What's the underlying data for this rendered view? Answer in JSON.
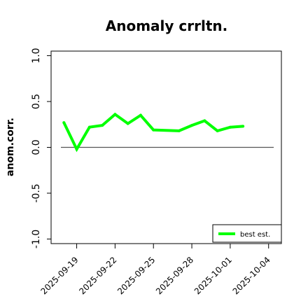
{
  "chart_data": {
    "type": "line",
    "title": "Anomaly crrltn.",
    "xlabel": "",
    "ylabel": "anom.corr.",
    "x": [
      "2025-09-18",
      "2025-09-19",
      "2025-09-20",
      "2025-09-21",
      "2025-09-22",
      "2025-09-23",
      "2025-09-24",
      "2025-09-25",
      "2025-09-27",
      "2025-09-28",
      "2025-09-29",
      "2025-09-30",
      "2025-10-01",
      "2025-10-02"
    ],
    "series": [
      {
        "name": "best est.",
        "color": "#00ff00",
        "values": [
          0.27,
          -0.02,
          0.22,
          0.24,
          0.36,
          0.26,
          0.35,
          0.19,
          0.18,
          0.24,
          0.29,
          0.18,
          0.22,
          0.23
        ]
      }
    ],
    "xticks": [
      "2025-09-19",
      "2025-09-22",
      "2025-09-25",
      "2025-09-28",
      "2025-10-01",
      "2025-10-04"
    ],
    "highlight_tick": "2025-09-25",
    "highlight_color": "#228b22",
    "yticks": [
      "-1.0",
      "-0.5",
      "0.0",
      "0.5",
      "1.0"
    ],
    "ytick_values": [
      -1.0,
      -0.5,
      0.0,
      0.5,
      1.0
    ],
    "xlim": [
      "2025-09-17",
      "2025-10-05"
    ],
    "ylim": [
      -1.05,
      1.05
    ],
    "reference_line": 0,
    "reference_color": "#555555",
    "grid": false,
    "legend_position": "bottom-right"
  }
}
